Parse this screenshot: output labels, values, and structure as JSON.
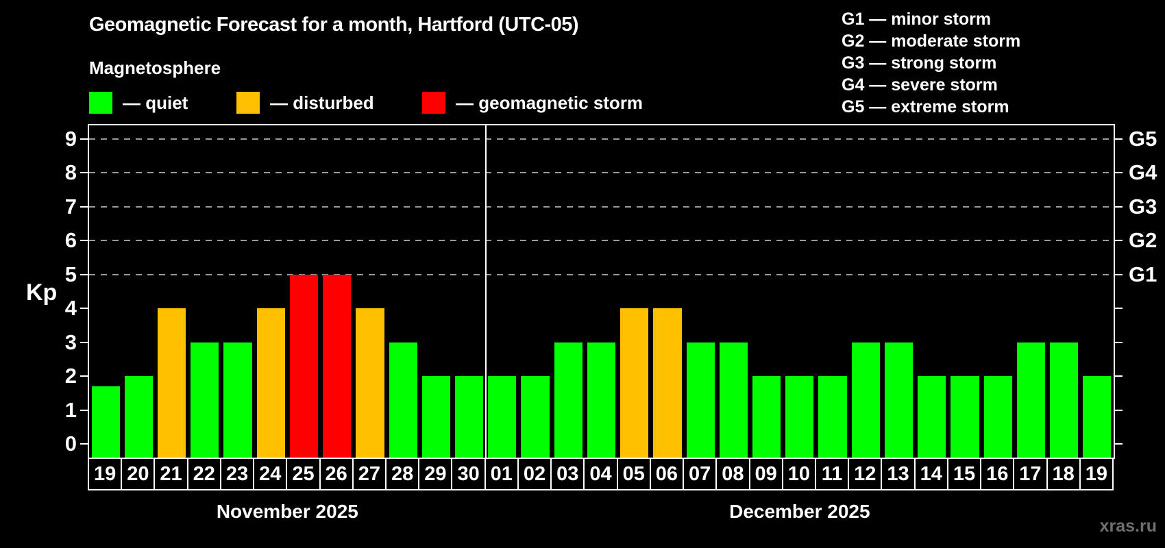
{
  "title": "Geomagnetic Forecast for a month, Hartford (UTC-05)",
  "subtitle": "Magnetosphere",
  "legend": {
    "quiet": {
      "label": "— quiet",
      "color": "#00ff00"
    },
    "disturbed": {
      "label": "— disturbed",
      "color": "#ffc000"
    },
    "storm": {
      "label": "— geomagnetic storm",
      "color": "#ff0000"
    }
  },
  "g_scale_legend": [
    "G1 — minor storm",
    "G2 — moderate storm",
    "G3 — strong storm",
    "G4 — severe storm",
    "G5 — extreme storm"
  ],
  "watermark": "xras.ru",
  "chart_data": {
    "type": "bar",
    "title": "Geomagnetic Forecast for a month, Hartford (UTC-05)",
    "ylabel": "Kp",
    "ylim": [
      -0.4,
      9.4
    ],
    "yticks": [
      0,
      1,
      2,
      3,
      4,
      5,
      6,
      7,
      8,
      9
    ],
    "gridlines_at": [
      5,
      6,
      7,
      8,
      9
    ],
    "grid": "dashed horizontal at Kp 5-9 only",
    "legend_position": "top",
    "right_axis_labels": [
      {
        "value": 5,
        "label": "G1"
      },
      {
        "value": 6,
        "label": "G2"
      },
      {
        "value": 7,
        "label": "G3"
      },
      {
        "value": 8,
        "label": "G4"
      },
      {
        "value": 9,
        "label": "G5"
      }
    ],
    "status_colors": {
      "quiet": "#00ff00",
      "disturbed": "#ffc000",
      "storm": "#ff0000"
    },
    "months": [
      {
        "label": "November 2025",
        "days": [
          {
            "day": "19",
            "value": 1.7,
            "status": "quiet"
          },
          {
            "day": "20",
            "value": 2,
            "status": "quiet"
          },
          {
            "day": "21",
            "value": 4,
            "status": "disturbed"
          },
          {
            "day": "22",
            "value": 3,
            "status": "quiet"
          },
          {
            "day": "23",
            "value": 3,
            "status": "quiet"
          },
          {
            "day": "24",
            "value": 4,
            "status": "disturbed"
          },
          {
            "day": "25",
            "value": 5,
            "status": "storm"
          },
          {
            "day": "26",
            "value": 5,
            "status": "storm"
          },
          {
            "day": "27",
            "value": 4,
            "status": "disturbed"
          },
          {
            "day": "28",
            "value": 3,
            "status": "quiet"
          },
          {
            "day": "29",
            "value": 2,
            "status": "quiet"
          },
          {
            "day": "30",
            "value": 2,
            "status": "quiet"
          }
        ]
      },
      {
        "label": "December 2025",
        "days": [
          {
            "day": "01",
            "value": 2,
            "status": "quiet"
          },
          {
            "day": "02",
            "value": 2,
            "status": "quiet"
          },
          {
            "day": "03",
            "value": 3,
            "status": "quiet"
          },
          {
            "day": "04",
            "value": 3,
            "status": "quiet"
          },
          {
            "day": "05",
            "value": 4,
            "status": "disturbed"
          },
          {
            "day": "06",
            "value": 4,
            "status": "disturbed"
          },
          {
            "day": "07",
            "value": 3,
            "status": "quiet"
          },
          {
            "day": "08",
            "value": 3,
            "status": "quiet"
          },
          {
            "day": "09",
            "value": 2,
            "status": "quiet"
          },
          {
            "day": "10",
            "value": 2,
            "status": "quiet"
          },
          {
            "day": "11",
            "value": 2,
            "status": "quiet"
          },
          {
            "day": "12",
            "value": 3,
            "status": "quiet"
          },
          {
            "day": "13",
            "value": 3,
            "status": "quiet"
          },
          {
            "day": "14",
            "value": 2,
            "status": "quiet"
          },
          {
            "day": "15",
            "value": 2,
            "status": "quiet"
          },
          {
            "day": "16",
            "value": 2,
            "status": "quiet"
          },
          {
            "day": "17",
            "value": 3,
            "status": "quiet"
          },
          {
            "day": "18",
            "value": 3,
            "status": "quiet"
          },
          {
            "day": "19",
            "value": 2,
            "status": "quiet"
          }
        ]
      }
    ]
  }
}
